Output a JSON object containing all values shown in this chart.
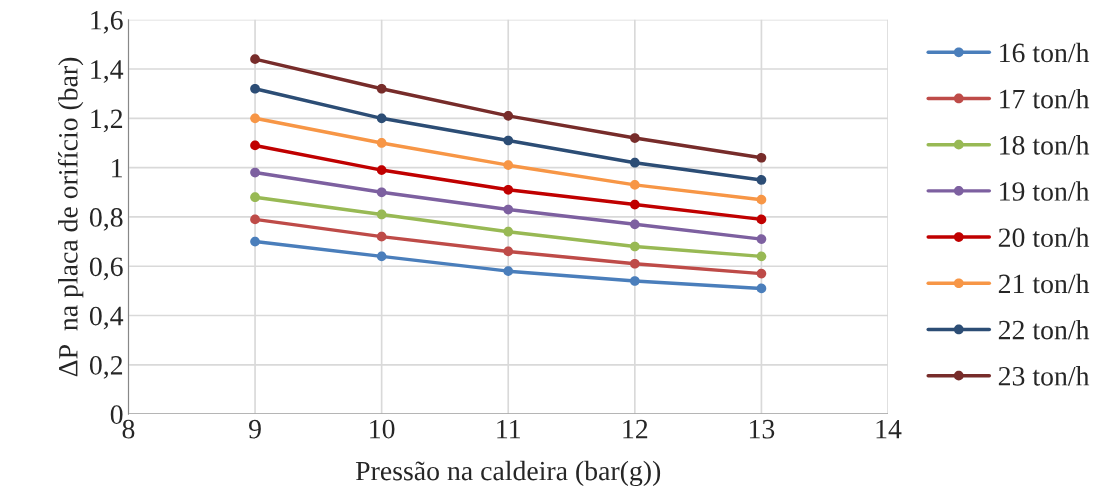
{
  "chart_data": {
    "type": "line",
    "xlabel": "Pressão na caldeira (bar(g))",
    "ylabel": "ΔP  na placa de orifício (bar)",
    "x": [
      9,
      10,
      11,
      12,
      13
    ],
    "series": [
      {
        "name": "16 ton/h",
        "color": "#4a7ebb",
        "values": [
          0.7,
          0.64,
          0.58,
          0.54,
          0.51
        ]
      },
      {
        "name": "17 ton/h",
        "color": "#be4b48",
        "values": [
          0.79,
          0.72,
          0.66,
          0.61,
          0.57
        ]
      },
      {
        "name": "18 ton/h",
        "color": "#98b954",
        "values": [
          0.88,
          0.81,
          0.74,
          0.68,
          0.64
        ]
      },
      {
        "name": "19 ton/h",
        "color": "#7d60a0",
        "values": [
          0.98,
          0.9,
          0.83,
          0.77,
          0.71
        ]
      },
      {
        "name": "20 ton/h",
        "color": "#c00000",
        "values": [
          1.09,
          0.99,
          0.91,
          0.85,
          0.79
        ]
      },
      {
        "name": "21 ton/h",
        "color": "#f79646",
        "values": [
          1.2,
          1.1,
          1.01,
          0.93,
          0.87
        ]
      },
      {
        "name": "22 ton/h",
        "color": "#2c4d75",
        "values": [
          1.32,
          1.2,
          1.11,
          1.02,
          0.95
        ]
      },
      {
        "name": "23 ton/h",
        "color": "#772c2a",
        "values": [
          1.44,
          1.32,
          1.21,
          1.12,
          1.04
        ]
      }
    ],
    "xlim": [
      8,
      14
    ],
    "xticks": [
      8,
      9,
      10,
      11,
      12,
      13,
      14
    ],
    "ylim": [
      0,
      1.6
    ],
    "yticks": [
      0,
      {
        "value": 0.2,
        "label": "0,2"
      },
      {
        "value": 0.4,
        "label": "0,4"
      },
      {
        "value": 0.6,
        "label": "0,6"
      },
      {
        "value": 0.8,
        "label": "0,8"
      },
      1,
      {
        "value": 1.2,
        "label": "1,2"
      },
      {
        "value": 1.4,
        "label": "1,4"
      },
      {
        "value": 1.6,
        "label": "1,6"
      }
    ],
    "grid": true,
    "legend": "right",
    "marker": "circle",
    "line_style": "solid"
  }
}
